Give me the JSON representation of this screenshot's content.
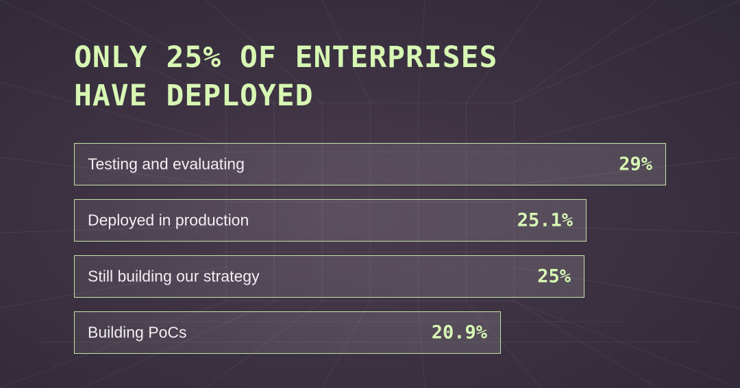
{
  "title_lines": [
    "ONLY 25% OF ENTERPRISES",
    "HAVE DEPLOYED"
  ],
  "colors": {
    "accent": "#d7f7b3",
    "bar_border": "#c8e6a8",
    "label": "#f2eef2",
    "background": "#3d3242"
  },
  "chart_data": {
    "type": "bar",
    "orientation": "horizontal",
    "title": "ONLY 25% OF ENTERPRISES HAVE DEPLOYED",
    "categories": [
      "Testing and evaluating",
      "Deployed in production",
      "Still building our strategy",
      "Building PoCs"
    ],
    "values": [
      29,
      25.1,
      25,
      20.9
    ],
    "value_labels": [
      "29%",
      "25.1%",
      "25%",
      "20.9%"
    ],
    "unit": "%",
    "xlim": [
      0,
      29
    ],
    "grid": false,
    "legend": "none"
  }
}
